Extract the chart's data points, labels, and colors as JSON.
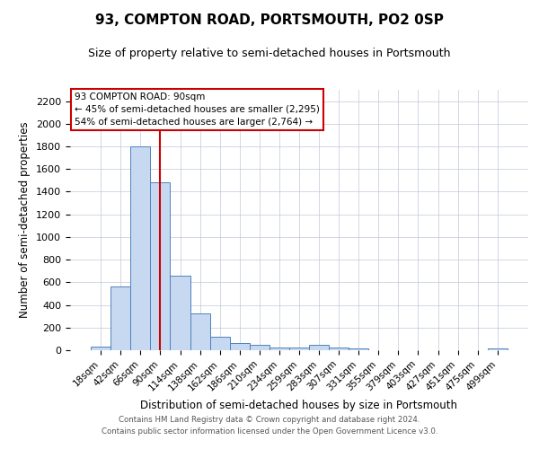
{
  "title": "93, COMPTON ROAD, PORTSMOUTH, PO2 0SP",
  "subtitle": "Size of property relative to semi-detached houses in Portsmouth",
  "xlabel": "Distribution of semi-detached houses by size in Portsmouth",
  "ylabel": "Number of semi-detached properties",
  "bar_color": "#c6d9f0",
  "bar_edge_color": "#4f81bd",
  "grid_color": "#c0c8d8",
  "background_color": "#ffffff",
  "annotation_line1": "93 COMPTON ROAD: 90sqm",
  "annotation_line2": "← 45% of semi-detached houses are smaller (2,295)",
  "annotation_line3": "54% of semi-detached houses are larger (2,764) →",
  "annotation_box_facecolor": "#ffffff",
  "annotation_box_edgecolor": "#cc0000",
  "vline_color": "#cc0000",
  "vline_x": 3.0,
  "categories": [
    "18sqm",
    "42sqm",
    "66sqm",
    "90sqm",
    "114sqm",
    "138sqm",
    "162sqm",
    "186sqm",
    "210sqm",
    "234sqm",
    "259sqm",
    "283sqm",
    "307sqm",
    "331sqm",
    "355sqm",
    "379sqm",
    "403sqm",
    "427sqm",
    "451sqm",
    "475sqm",
    "499sqm"
  ],
  "values": [
    35,
    560,
    1800,
    1480,
    660,
    325,
    120,
    65,
    50,
    25,
    20,
    50,
    20,
    15,
    0,
    0,
    0,
    0,
    0,
    0,
    15
  ],
  "ylim": [
    0,
    2300
  ],
  "yticks": [
    0,
    200,
    400,
    600,
    800,
    1000,
    1200,
    1400,
    1600,
    1800,
    2000,
    2200
  ],
  "footnote1": "Contains HM Land Registry data © Crown copyright and database right 2024.",
  "footnote2": "Contains public sector information licensed under the Open Government Licence v3.0."
}
